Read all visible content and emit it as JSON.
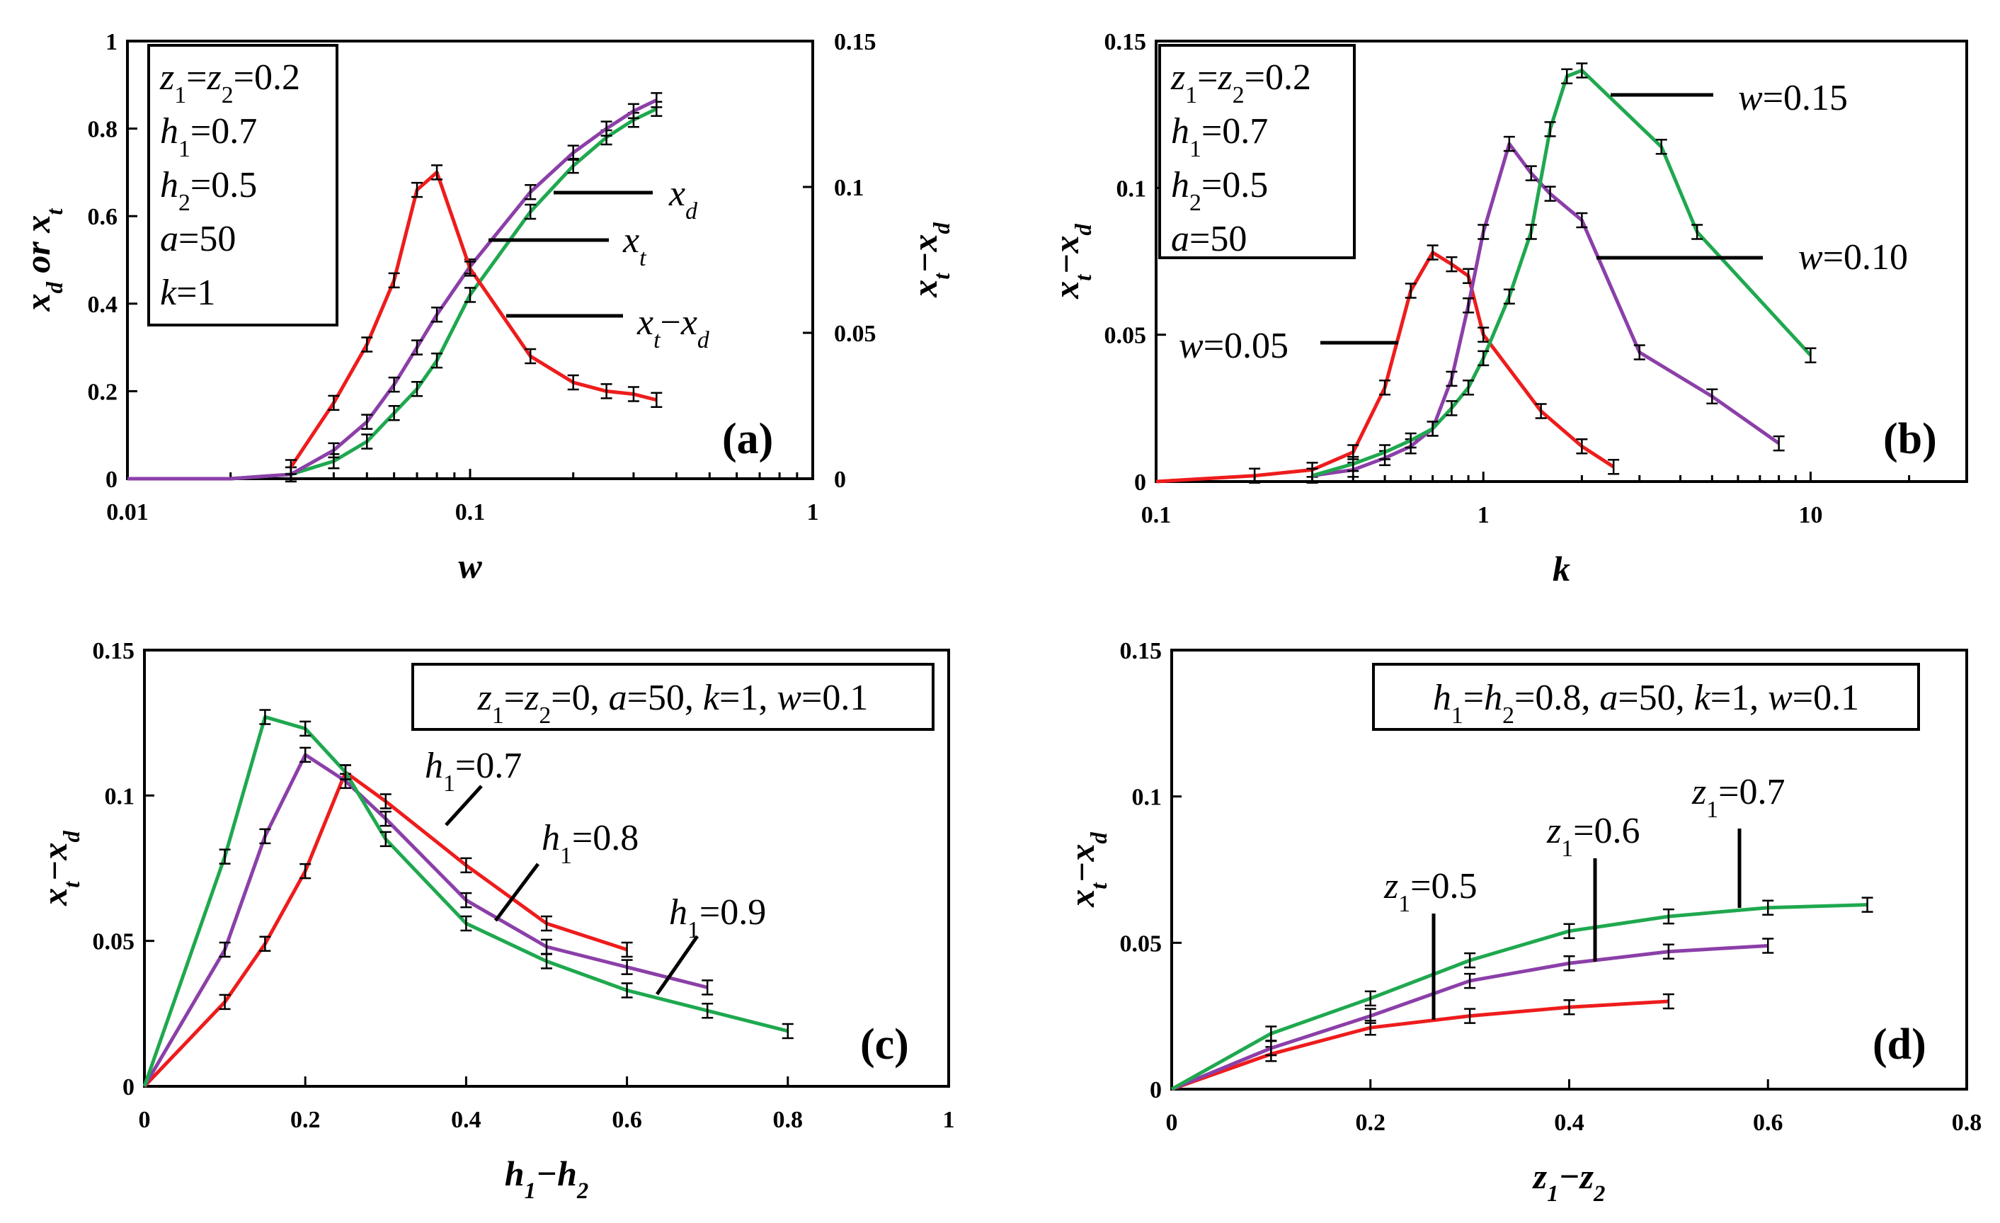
{
  "colors": {
    "red": "#ee1c1c",
    "purple": "#8b3fa8",
    "green": "#1fa84f",
    "axis": "#000000"
  },
  "chart_data": [
    {
      "id": "a",
      "type": "line",
      "panel_label": "(a)",
      "xscale": "log",
      "xlim": [
        0.01,
        1
      ],
      "xticks": [
        0.01,
        0.1,
        1
      ],
      "xtick_labels": [
        "0.01",
        "0.1",
        "1"
      ],
      "xlabel": "w",
      "ylabel": "xd or xt",
      "ylim": [
        0,
        1
      ],
      "yticks": [
        0,
        0.2,
        0.4,
        0.6,
        0.8,
        1
      ],
      "ytick_labels": [
        "0",
        "0.2",
        "0.4",
        "0.6",
        "0.8",
        "1"
      ],
      "y2label": "xt−xd",
      "y2lim": [
        0,
        0.15
      ],
      "y2ticks": [
        0,
        0.05,
        0.1,
        0.15
      ],
      "y2tick_labels": [
        "0",
        "0.05",
        "0.1",
        "0.15"
      ],
      "params": [
        "z1=z2=0.2",
        "h1=0.7",
        "h2=0.5",
        "a=50",
        "k=1"
      ],
      "series": [
        {
          "name": "xd",
          "color": "green",
          "axis": "left",
          "x": [
            0.01,
            0.02,
            0.03,
            0.04,
            0.05,
            0.06,
            0.07,
            0.08,
            0.1,
            0.15,
            0.2,
            0.25,
            0.3,
            0.35
          ],
          "y": [
            0,
            0,
            0.01,
            0.04,
            0.085,
            0.15,
            0.205,
            0.27,
            0.42,
            0.61,
            0.715,
            0.78,
            0.82,
            0.845
          ]
        },
        {
          "name": "xt",
          "color": "purple",
          "axis": "left",
          "x": [
            0.01,
            0.02,
            0.03,
            0.04,
            0.05,
            0.06,
            0.07,
            0.08,
            0.1,
            0.15,
            0.2,
            0.25,
            0.3,
            0.35
          ],
          "y": [
            0,
            0,
            0.01,
            0.065,
            0.13,
            0.215,
            0.3,
            0.375,
            0.485,
            0.655,
            0.745,
            0.8,
            0.84,
            0.865
          ]
        },
        {
          "name": "xt−xd",
          "color": "red",
          "axis": "right",
          "x": [
            0.03,
            0.04,
            0.05,
            0.06,
            0.07,
            0.08,
            0.1,
            0.15,
            0.2,
            0.25,
            0.3,
            0.35
          ],
          "y": [
            0.004,
            0.026,
            0.046,
            0.068,
            0.099,
            0.105,
            0.072,
            0.042,
            0.033,
            0.03,
            0.029,
            0.027
          ]
        }
      ],
      "annotations": [
        {
          "text": "xd",
          "series": "xd"
        },
        {
          "text": "xt",
          "series": "xt"
        },
        {
          "text": "xt−xd",
          "series": "xt−xd"
        }
      ]
    },
    {
      "id": "b",
      "type": "line",
      "panel_label": "(b)",
      "xscale": "log",
      "xlim": [
        0.1,
        30
      ],
      "xticks": [
        0.1,
        1,
        10
      ],
      "xtick_labels": [
        "0.1",
        "1",
        "10"
      ],
      "xlabel": "k",
      "ylabel": "xt−xd",
      "ylim": [
        0,
        0.15
      ],
      "yticks": [
        0,
        0.05,
        0.1,
        0.15
      ],
      "ytick_labels": [
        "0",
        "0.05",
        "0.1",
        "0.15"
      ],
      "params": [
        "z1=z2=0.2",
        "h1=0.7",
        "h2=0.5",
        "a=50"
      ],
      "series": [
        {
          "name": "w=0.05",
          "color": "red",
          "x": [
            0.1,
            0.2,
            0.3,
            0.4,
            0.5,
            0.6,
            0.7,
            0.8,
            0.9,
            1,
            1.5,
            2,
            2.5
          ],
          "y": [
            0,
            0.002,
            0.004,
            0.01,
            0.032,
            0.065,
            0.078,
            0.074,
            0.07,
            0.05,
            0.024,
            0.012,
            0.005
          ]
        },
        {
          "name": "w=0.10",
          "color": "purple",
          "x": [
            0.3,
            0.4,
            0.5,
            0.6,
            0.7,
            0.8,
            0.9,
            1,
            1.2,
            1.4,
            1.6,
            2,
            3,
            5,
            8
          ],
          "y": [
            0.002,
            0.004,
            0.008,
            0.012,
            0.018,
            0.035,
            0.06,
            0.085,
            0.115,
            0.105,
            0.098,
            0.089,
            0.044,
            0.029,
            0.013
          ]
        },
        {
          "name": "w=0.15",
          "color": "green",
          "x": [
            0.3,
            0.4,
            0.5,
            0.6,
            0.7,
            0.8,
            0.9,
            1,
            1.2,
            1.4,
            1.6,
            1.8,
            2,
            3.5,
            4.5,
            10
          ],
          "y": [
            0.002,
            0.006,
            0.01,
            0.014,
            0.018,
            0.025,
            0.032,
            0.042,
            0.063,
            0.085,
            0.12,
            0.138,
            0.14,
            0.114,
            0.085,
            0.043
          ]
        }
      ],
      "annotations": [
        {
          "text": "w=0.15",
          "series": "w=0.15"
        },
        {
          "text": "w=0.10",
          "series": "w=0.10"
        },
        {
          "text": "w=0.05",
          "series": "w=0.05"
        }
      ]
    },
    {
      "id": "c",
      "type": "line",
      "panel_label": "(c)",
      "xscale": "linear",
      "xlim": [
        0,
        1
      ],
      "xticks": [
        0,
        0.2,
        0.4,
        0.6,
        0.8,
        1
      ],
      "xtick_labels": [
        "0",
        "0.2",
        "0.4",
        "0.6",
        "0.8",
        "1"
      ],
      "xlabel": "h1−h2",
      "ylabel": "xt−xd",
      "ylim": [
        0,
        0.15
      ],
      "yticks": [
        0,
        0.05,
        0.1,
        0.15
      ],
      "ytick_labels": [
        "0",
        "0.05",
        "0.1",
        "0.15"
      ],
      "params": [
        "z1=z2=0, a=50, k=1, w=0.1"
      ],
      "series": [
        {
          "name": "h1=0.7",
          "color": "red",
          "x": [
            0,
            0.1,
            0.15,
            0.2,
            0.25,
            0.3,
            0.4,
            0.5,
            0.6
          ],
          "y": [
            0,
            0.029,
            0.049,
            0.074,
            0.108,
            0.098,
            0.076,
            0.056,
            0.047
          ]
        },
        {
          "name": "h1=0.8",
          "color": "purple",
          "x": [
            0,
            0.1,
            0.15,
            0.2,
            0.25,
            0.3,
            0.4,
            0.5,
            0.6,
            0.7
          ],
          "y": [
            0,
            0.047,
            0.086,
            0.114,
            0.105,
            0.092,
            0.064,
            0.048,
            0.041,
            0.034
          ]
        },
        {
          "name": "h1=0.9",
          "color": "green",
          "x": [
            0,
            0.1,
            0.15,
            0.2,
            0.25,
            0.3,
            0.4,
            0.5,
            0.6,
            0.7,
            0.8
          ],
          "y": [
            0,
            0.079,
            0.127,
            0.123,
            0.108,
            0.085,
            0.056,
            0.043,
            0.033,
            0.026,
            0.019
          ]
        }
      ],
      "annotations": [
        {
          "text": "h1=0.7",
          "series": "h1=0.7"
        },
        {
          "text": "h1=0.8",
          "series": "h1=0.8"
        },
        {
          "text": "h1=0.9",
          "series": "h1=0.9"
        }
      ]
    },
    {
      "id": "d",
      "type": "line",
      "panel_label": "(d)",
      "xscale": "linear",
      "xlim": [
        0,
        0.8
      ],
      "xticks": [
        0,
        0.2,
        0.4,
        0.6,
        0.8
      ],
      "xtick_labels": [
        "0",
        "0.2",
        "0.4",
        "0.6",
        "0.8"
      ],
      "xlabel": "z1−z2",
      "ylabel": "xt−xd",
      "ylim": [
        0,
        0.15
      ],
      "yticks": [
        0,
        0.05,
        0.1,
        0.15
      ],
      "ytick_labels": [
        "0",
        "0.05",
        "0.1",
        "0.15"
      ],
      "params": [
        "h1=h2=0.8, a=50, k=1, w=0.1"
      ],
      "series": [
        {
          "name": "z1=0.5",
          "color": "red",
          "x": [
            0,
            0.1,
            0.2,
            0.3,
            0.4,
            0.5
          ],
          "y": [
            0,
            0.012,
            0.021,
            0.025,
            0.028,
            0.03
          ]
        },
        {
          "name": "z1=0.6",
          "color": "purple",
          "x": [
            0,
            0.1,
            0.2,
            0.3,
            0.4,
            0.5,
            0.6
          ],
          "y": [
            0,
            0.014,
            0.025,
            0.037,
            0.043,
            0.047,
            0.049
          ]
        },
        {
          "name": "z1=0.7",
          "color": "green",
          "x": [
            0,
            0.1,
            0.2,
            0.3,
            0.4,
            0.5,
            0.6,
            0.7
          ],
          "y": [
            0,
            0.019,
            0.031,
            0.044,
            0.054,
            0.059,
            0.062,
            0.063
          ]
        }
      ],
      "annotations": [
        {
          "text": "z1=0.5",
          "series": "z1=0.5"
        },
        {
          "text": "z1=0.6",
          "series": "z1=0.6"
        },
        {
          "text": "z1=0.7",
          "series": "z1=0.7"
        }
      ]
    }
  ]
}
